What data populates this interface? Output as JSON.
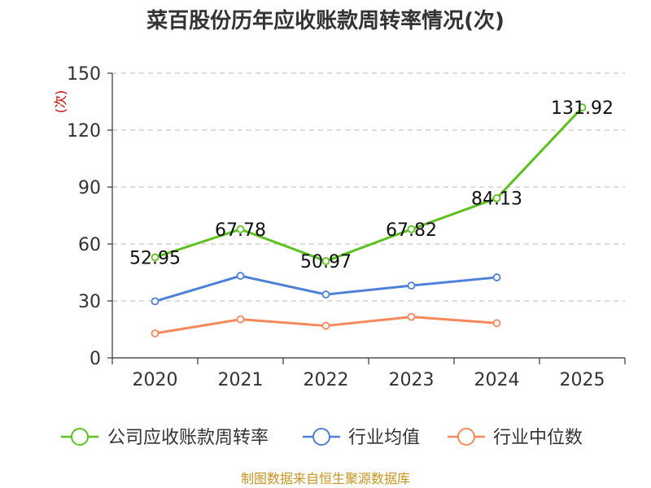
{
  "chart_data": {
    "type": "line",
    "title": "菜百股份历年应收账款周转率情况(次)",
    "ylabel": "(次)",
    "xlabel": "",
    "categories": [
      "2020",
      "2021",
      "2022",
      "2023",
      "2024",
      "2025"
    ],
    "yticks": [
      "0",
      "30",
      "60",
      "90",
      "120",
      "150"
    ],
    "ylim": [
      0,
      150
    ],
    "grid": true,
    "legend_position": "bottom",
    "series": [
      {
        "name": "公司应收账款周转率",
        "color": "#5bc21e",
        "values": [
          52.95,
          67.78,
          50.97,
          67.82,
          84.13,
          131.92
        ],
        "labels": [
          "52.95",
          "67.78",
          "50.97",
          "67.82",
          "84.13",
          "131.92"
        ]
      },
      {
        "name": "行业均值",
        "color": "#4f80d9",
        "values": [
          29.8,
          43.2,
          33.4,
          38.1,
          42.4,
          null
        ]
      },
      {
        "name": "行业中位数",
        "color": "#f5895a",
        "values": [
          12.9,
          20.3,
          16.9,
          21.6,
          18.3,
          null
        ]
      }
    ]
  },
  "footer": "制图数据来自恒生聚源数据库"
}
